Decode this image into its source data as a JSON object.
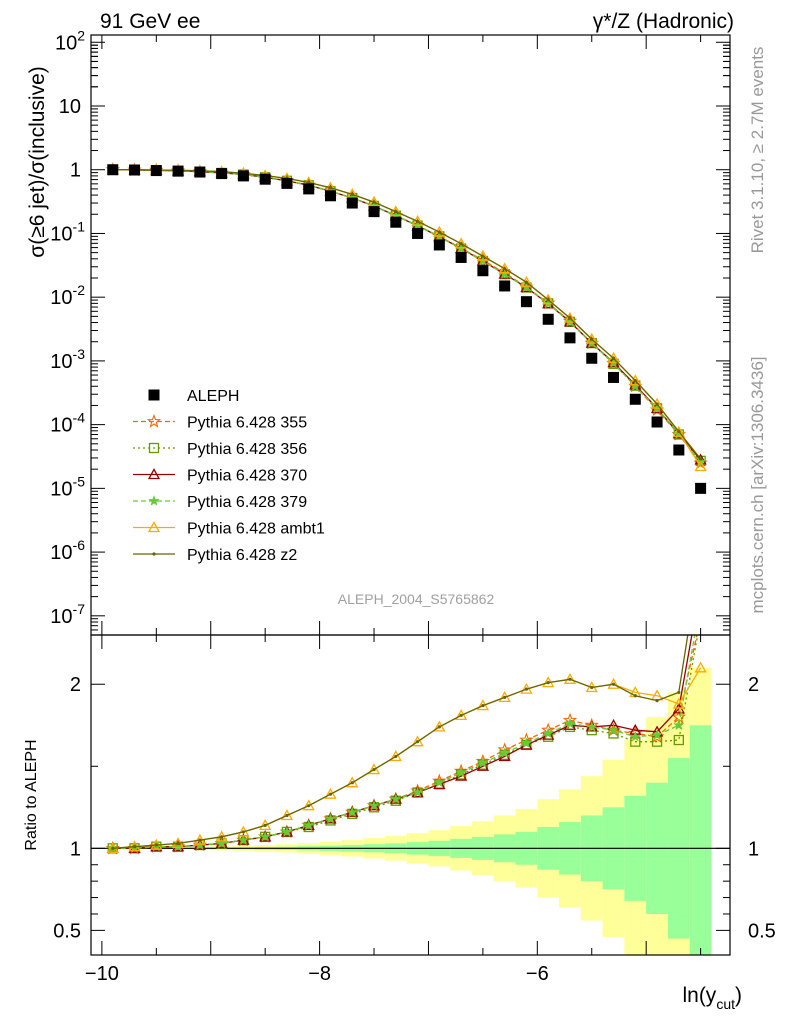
{
  "header": {
    "left_label": "91 GeV ee",
    "right_label": "γ*/Z (Hadronic)",
    "side_rivet": "Rivet 3.1.10, ≥ 2.7M events",
    "side_mcplots": "mcplots.cern.ch [arXiv:1306.3436]"
  },
  "chart_data": [
    {
      "type": "scatter",
      "title": "",
      "analysis_tag": "ALEPH_2004_S5765862",
      "xlabel": "ln(y_cut)",
      "ylabel": "σ(≥6 jet)/σ(inclusive)",
      "ylog": true,
      "xlim": [
        -10.1,
        -4.23
      ],
      "ylim": [
        5e-08,
        130
      ],
      "y_ticks": [
        "10^-7",
        "10^-6",
        "10^-5",
        "10^-4",
        "10^-3",
        "10^-2",
        "10^-1",
        "1",
        "10",
        "10^2"
      ],
      "legend_placement": "middle-left",
      "x": [
        -9.9,
        -9.7,
        -9.5,
        -9.3,
        -9.1,
        -8.9,
        -8.7,
        -8.5,
        -8.3,
        -8.1,
        -7.9,
        -7.7,
        -7.5,
        -7.3,
        -7.1,
        -6.9,
        -6.7,
        -6.5,
        -6.3,
        -6.1,
        -5.9,
        -5.7,
        -5.5,
        -5.3,
        -5.1,
        -4.9,
        -4.7,
        -4.5
      ],
      "series": [
        {
          "name": "ALEPH",
          "color": "#000000",
          "marker": "square",
          "values": [
            1.0,
            0.99,
            0.97,
            0.95,
            0.92,
            0.87,
            0.8,
            0.71,
            0.61,
            0.5,
            0.39,
            0.3,
            0.22,
            0.15,
            0.1,
            0.066,
            0.042,
            0.026,
            0.015,
            0.0085,
            0.0045,
            0.0023,
            0.0011,
            0.00055,
            0.00025,
            0.00011,
            4e-05,
            1e-05
          ]
        },
        {
          "name": "Pythia 6.428 355",
          "color": "#ff6600",
          "marker": "star-open",
          "dash": "5,3",
          "values": [
            1.0,
            0.99,
            0.98,
            0.96,
            0.93,
            0.89,
            0.84,
            0.76,
            0.67,
            0.57,
            0.46,
            0.36,
            0.27,
            0.19,
            0.134,
            0.09,
            0.059,
            0.038,
            0.024,
            0.0144,
            0.0081,
            0.0042,
            0.0019,
            0.00092,
            0.0004,
            0.00017,
            7e-05,
            2.5e-05
          ]
        },
        {
          "name": "Pythia 6.428 356",
          "color": "#669900",
          "marker": "square-open",
          "dash": "2,3",
          "values": [
            1.0,
            0.99,
            0.98,
            0.96,
            0.93,
            0.89,
            0.84,
            0.76,
            0.67,
            0.57,
            0.46,
            0.36,
            0.27,
            0.19,
            0.133,
            0.09,
            0.058,
            0.037,
            0.023,
            0.0142,
            0.008,
            0.0041,
            0.0019,
            0.0009,
            0.00041,
            0.00018,
            7e-05,
            2.7e-05
          ]
        },
        {
          "name": "Pythia 6.428 370",
          "color": "#990000",
          "marker": "triangle-open",
          "dash": "",
          "values": [
            1.0,
            0.99,
            0.98,
            0.96,
            0.93,
            0.89,
            0.84,
            0.76,
            0.67,
            0.57,
            0.46,
            0.36,
            0.27,
            0.19,
            0.132,
            0.089,
            0.058,
            0.037,
            0.023,
            0.0142,
            0.0079,
            0.0041,
            0.0019,
            0.00094,
            0.00042,
            0.00018,
            7.2e-05,
            2.8e-05
          ]
        },
        {
          "name": "Pythia 6.428 379",
          "color": "#66cc33",
          "marker": "star",
          "dash": "5,3",
          "values": [
            1.0,
            0.99,
            0.98,
            0.96,
            0.93,
            0.89,
            0.84,
            0.76,
            0.67,
            0.57,
            0.46,
            0.36,
            0.27,
            0.19,
            0.133,
            0.089,
            0.058,
            0.037,
            0.023,
            0.0143,
            0.0079,
            0.0041,
            0.0019,
            0.00092,
            0.0004,
            0.00018,
            7.1e-05,
            2.6e-05
          ]
        },
        {
          "name": "Pythia 6.428 ambt1",
          "color": "#ffaa00",
          "marker": "triangle-open",
          "dash": "",
          "values": [
            1.0,
            1.0,
            0.99,
            0.98,
            0.96,
            0.93,
            0.88,
            0.81,
            0.73,
            0.63,
            0.52,
            0.41,
            0.31,
            0.22,
            0.155,
            0.105,
            0.069,
            0.044,
            0.028,
            0.0172,
            0.0091,
            0.0047,
            0.0022,
            0.0011,
            0.00049,
            0.00021,
            7.6e-05,
            2.2e-05
          ]
        },
        {
          "name": "Pythia 6.428 z2",
          "color": "#666600",
          "marker": "dot",
          "dash": "",
          "values": [
            1.0,
            1.0,
            0.99,
            0.98,
            0.96,
            0.93,
            0.88,
            0.81,
            0.73,
            0.63,
            0.52,
            0.41,
            0.31,
            0.22,
            0.155,
            0.105,
            0.069,
            0.044,
            0.028,
            0.0172,
            0.0091,
            0.0047,
            0.0022,
            0.0011,
            0.00049,
            0.00021,
            7.8e-05,
            2.9e-05
          ]
        }
      ]
    },
    {
      "type": "line",
      "ylabel": "Ratio to ALEPH",
      "ylim": [
        0.35,
        2.3
      ],
      "y_ticks": [
        "0.5",
        "1",
        "2"
      ],
      "x_ticks": [
        "−10",
        "−8",
        "−6"
      ],
      "reference_line": 1,
      "band_edges": [
        -10.0,
        -9.8,
        -9.6,
        -9.4,
        -9.2,
        -9.0,
        -8.8,
        -8.6,
        -8.4,
        -8.2,
        -8.0,
        -7.8,
        -7.6,
        -7.4,
        -7.2,
        -7.0,
        -6.8,
        -6.6,
        -6.4,
        -6.2,
        -6.0,
        -5.8,
        -5.6,
        -5.4,
        -5.2,
        -5.0,
        -4.8,
        -4.6,
        -4.4
      ],
      "band_green_half_width": [
        0.002,
        0.002,
        0.003,
        0.003,
        0.004,
        0.005,
        0.006,
        0.008,
        0.01,
        0.013,
        0.016,
        0.02,
        0.025,
        0.03,
        0.038,
        0.046,
        0.058,
        0.07,
        0.085,
        0.1,
        0.13,
        0.16,
        0.2,
        0.25,
        0.32,
        0.4,
        0.55,
        0.75
      ],
      "band_yellow_half_width": [
        0.004,
        0.005,
        0.006,
        0.007,
        0.009,
        0.012,
        0.015,
        0.02,
        0.025,
        0.032,
        0.04,
        0.05,
        0.062,
        0.075,
        0.092,
        0.11,
        0.135,
        0.165,
        0.2,
        0.24,
        0.3,
        0.36,
        0.44,
        0.54,
        0.66,
        0.8,
        0.95,
        1.1
      ],
      "series": [
        {
          "name": "Pythia 6.428 355",
          "values": [
            1.0,
            1.0,
            1.01,
            1.01,
            1.02,
            1.03,
            1.05,
            1.07,
            1.1,
            1.14,
            1.18,
            1.22,
            1.26,
            1.3,
            1.35,
            1.41,
            1.47,
            1.53,
            1.6,
            1.66,
            1.72,
            1.78,
            1.75,
            1.72,
            1.7,
            1.68,
            1.8,
            2.4
          ]
        },
        {
          "name": "Pythia 6.428 356",
          "values": [
            1.0,
            1.0,
            1.01,
            1.01,
            1.02,
            1.03,
            1.05,
            1.07,
            1.1,
            1.13,
            1.17,
            1.21,
            1.25,
            1.29,
            1.34,
            1.39,
            1.45,
            1.51,
            1.57,
            1.63,
            1.68,
            1.74,
            1.72,
            1.7,
            1.65,
            1.65,
            1.66,
            2.4
          ]
        },
        {
          "name": "Pythia 6.428 370",
          "values": [
            1.0,
            1.0,
            1.01,
            1.01,
            1.02,
            1.03,
            1.05,
            1.07,
            1.1,
            1.14,
            1.18,
            1.22,
            1.26,
            1.3,
            1.34,
            1.39,
            1.44,
            1.5,
            1.56,
            1.63,
            1.69,
            1.75,
            1.74,
            1.75,
            1.72,
            1.71,
            1.85,
            2.6
          ]
        },
        {
          "name": "Pythia 6.428 379",
          "values": [
            1.0,
            1.0,
            1.01,
            1.01,
            1.02,
            1.03,
            1.05,
            1.07,
            1.1,
            1.14,
            1.18,
            1.22,
            1.26,
            1.3,
            1.34,
            1.4,
            1.46,
            1.52,
            1.58,
            1.64,
            1.7,
            1.76,
            1.74,
            1.72,
            1.68,
            1.69,
            1.75,
            2.5
          ]
        },
        {
          "name": "Pythia 6.428 ambt1",
          "values": [
            1.0,
            1.01,
            1.02,
            1.03,
            1.05,
            1.07,
            1.1,
            1.14,
            1.2,
            1.26,
            1.33,
            1.4,
            1.48,
            1.56,
            1.65,
            1.74,
            1.81,
            1.87,
            1.92,
            1.97,
            2.01,
            2.03,
            1.98,
            2.0,
            1.95,
            1.93,
            1.88,
            2.1
          ]
        },
        {
          "name": "Pythia 6.428 z2",
          "values": [
            1.0,
            1.01,
            1.02,
            1.03,
            1.05,
            1.07,
            1.1,
            1.14,
            1.2,
            1.26,
            1.33,
            1.4,
            1.48,
            1.56,
            1.65,
            1.74,
            1.81,
            1.87,
            1.92,
            1.97,
            2.01,
            2.03,
            1.98,
            2.0,
            1.93,
            1.9,
            1.95,
            2.8
          ]
        }
      ]
    }
  ]
}
